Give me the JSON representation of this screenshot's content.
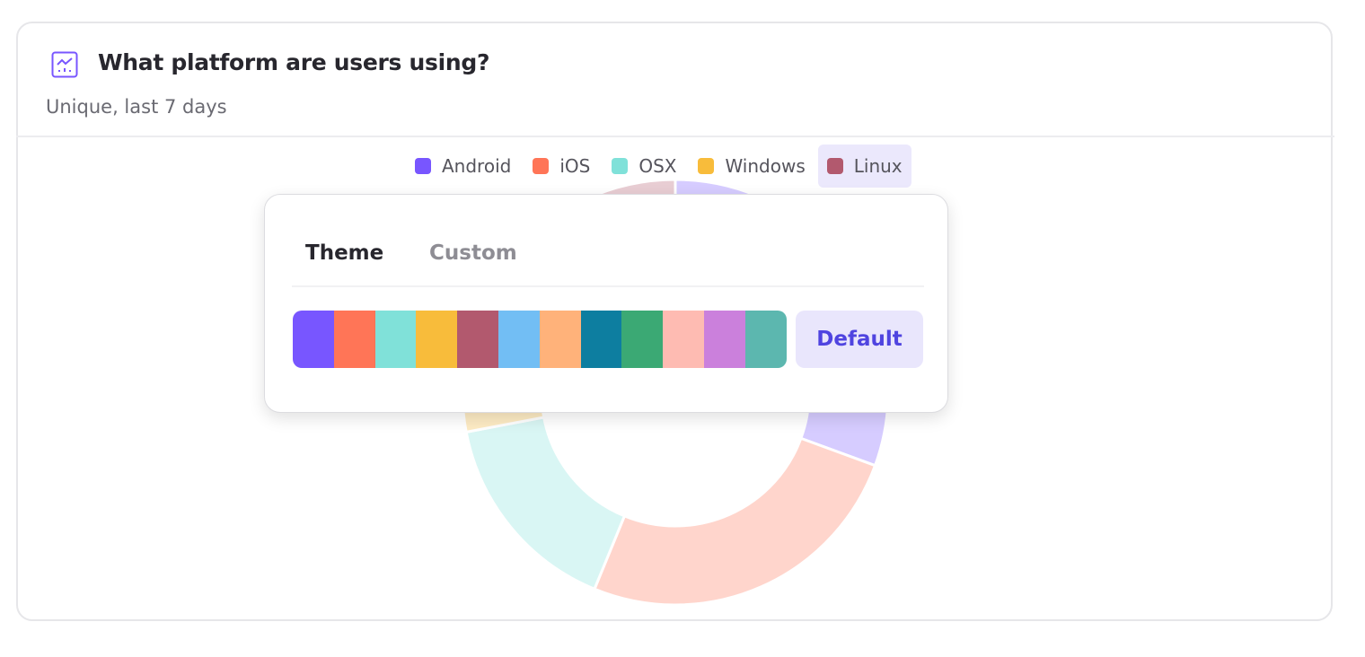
{
  "card": {
    "title": "What platform are users using?",
    "subtitle": "Unique, last 7 days",
    "icon": "line-chart-icon",
    "accent": "#7856ff"
  },
  "chart_data": {
    "type": "pie",
    "variant": "donut",
    "categories": [
      "Android",
      "iOS",
      "OSX",
      "Windows",
      "Linux"
    ],
    "values": [
      30.6,
      25.6,
      15.8,
      14,
      14
    ],
    "colors": [
      "#7856ff",
      "#ff7557",
      "#80e1d9",
      "#f8bc3b",
      "#b2596e"
    ],
    "legend": "top-center",
    "highlighted_legend": "Linux"
  },
  "popup": {
    "tabs": [
      {
        "label": "Theme",
        "active": true
      },
      {
        "label": "Custom",
        "active": false
      }
    ],
    "palette": [
      "#7856ff",
      "#ff7557",
      "#80e1d9",
      "#f8bc3b",
      "#b2596e",
      "#72bef4",
      "#ffb27a",
      "#0d7ea0",
      "#3ba974",
      "#febbb2",
      "#cb80dc",
      "#5cb7af"
    ],
    "default_label": "Default"
  }
}
